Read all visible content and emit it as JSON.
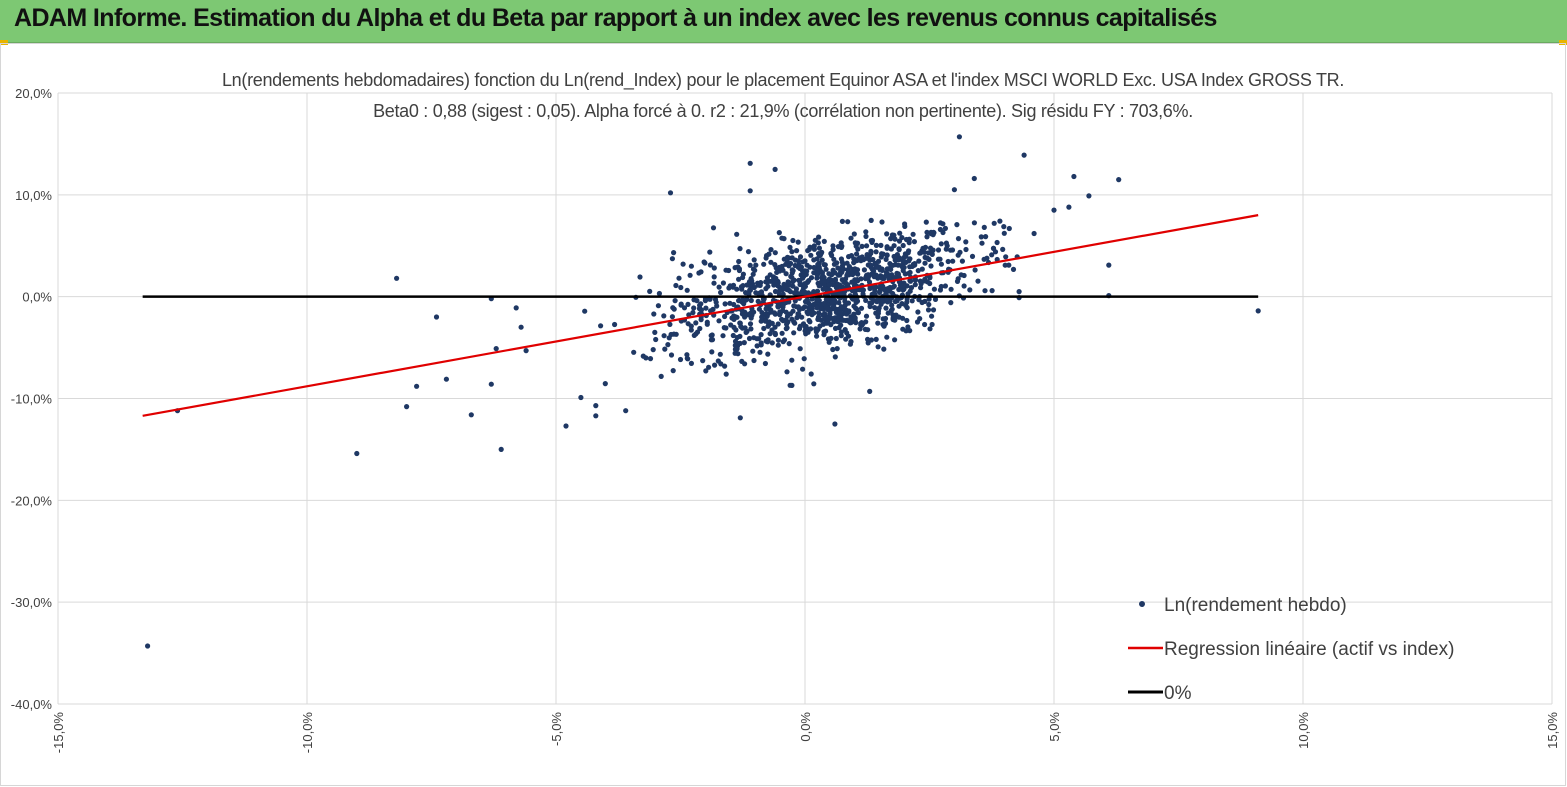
{
  "banner": {
    "title": "ADAM Informe. Estimation du Alpha et du Beta par rapport à un index avec les revenus connus capitalisés"
  },
  "colors": {
    "banner": "#7dc873",
    "points": "#1f3864",
    "regression": "#e00000",
    "zero_line": "#000000",
    "grid": "#d9d9d9"
  },
  "chart_data": {
    "type": "scatter",
    "title": "Ln(rendements hebdomadaires) fonction du Ln(rend_Index) pour le placement Equinor ASA et l'index MSCI WORLD  Exc. USA Index GROSS TR.",
    "subtitle": "Beta0 : 0,88 (sigest : 0,05). Alpha forcé à 0. r2 : 21,9% (corrélation non pertinente). Sig résidu FY : 703,6%.",
    "xlim": [
      -15,
      15
    ],
    "ylim": [
      -40,
      20
    ],
    "x_ticks": [
      "-15,0%",
      "-10,0%",
      "-5,0%",
      "0,0%",
      "5,0%",
      "10,0%",
      "15,0%"
    ],
    "y_ticks": [
      "20,0%",
      "10,0%",
      "0,0%",
      "-10,0%",
      "-20,0%",
      "-30,0%",
      "-40,0%"
    ],
    "grid": true,
    "legend_position": "bottom-right",
    "legend": [
      "Ln(rendement hebdo)",
      "Regression linéaire (actif vs index)",
      "0%"
    ],
    "regression": {
      "beta": 0.88,
      "alpha": 0,
      "x": [
        -13.3,
        9.1
      ]
    },
    "zero_line": {
      "x": [
        -13.3,
        9.1
      ],
      "y": 0
    },
    "highlight_points": [
      [
        -13.2,
        -34.3
      ],
      [
        -12.6,
        -11.2
      ],
      [
        -9.0,
        -15.4
      ],
      [
        -8.2,
        1.8
      ],
      [
        -8.0,
        -10.8
      ],
      [
        -7.8,
        -8.8
      ],
      [
        -7.4,
        -2.0
      ],
      [
        -7.2,
        -8.1
      ],
      [
        -6.7,
        -11.6
      ],
      [
        -6.3,
        -8.6
      ],
      [
        -6.3,
        -0.2
      ],
      [
        -6.2,
        -5.1
      ],
      [
        -6.1,
        -15.0
      ],
      [
        -5.8,
        -1.1
      ],
      [
        -5.7,
        -3.0
      ],
      [
        -5.6,
        -5.3
      ],
      [
        -4.8,
        -12.7
      ],
      [
        -4.5,
        -9.9
      ],
      [
        -4.2,
        -10.7
      ],
      [
        -4.2,
        -11.7
      ],
      [
        -3.6,
        -11.2
      ],
      [
        -2.7,
        10.2
      ],
      [
        -1.3,
        -11.9
      ],
      [
        -1.1,
        13.1
      ],
      [
        -1.1,
        10.4
      ],
      [
        -0.6,
        12.5
      ],
      [
        -0.3,
        -8.7
      ],
      [
        0.6,
        -12.5
      ],
      [
        1.3,
        -9.3
      ],
      [
        3.1,
        15.7
      ],
      [
        3.0,
        10.5
      ],
      [
        3.4,
        11.6
      ],
      [
        4.4,
        13.9
      ],
      [
        5.0,
        8.5
      ],
      [
        5.3,
        8.8
      ],
      [
        5.4,
        11.8
      ],
      [
        5.7,
        9.9
      ],
      [
        6.3,
        11.5
      ],
      [
        6.1,
        3.1
      ],
      [
        6.1,
        0.1
      ],
      [
        9.1,
        -1.4
      ],
      [
        4.3,
        0.5
      ],
      [
        3.8,
        7.2
      ],
      [
        3.6,
        6.8
      ],
      [
        4.6,
        6.2
      ]
    ],
    "cluster": {
      "description_note": "",
      "count": 1250,
      "center_x": 0.4,
      "spread_x": 1.45,
      "beta": 0.88,
      "resid_sd": 2.7
    }
  }
}
